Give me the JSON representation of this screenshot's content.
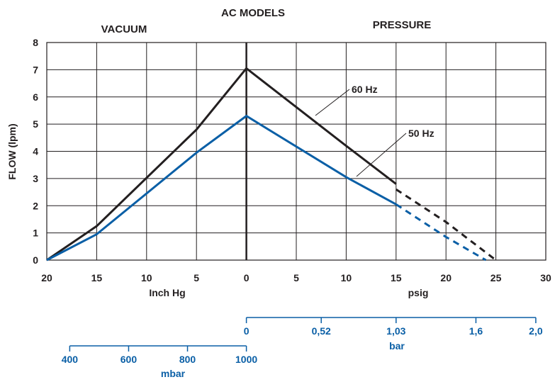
{
  "chart_data": {
    "type": "line",
    "title": "AC MODELS",
    "region_labels": {
      "left": "VACUUM",
      "right": "PRESSURE"
    },
    "ylabel": "FLOW (lpm)",
    "ylim": [
      0,
      8
    ],
    "yticks": [
      "0",
      "1",
      "2",
      "3",
      "4",
      "5",
      "6",
      "7",
      "8"
    ],
    "grid": true,
    "x_axis": {
      "tick_labels": [
        "20",
        "15",
        "10",
        "5",
        "0",
        "5",
        "10",
        "15",
        "20",
        "25",
        "30"
      ],
      "vacuum_unit": "Inch Hg",
      "pressure_unit": "psig"
    },
    "bar_axis": {
      "label": "bar",
      "ticks": [
        {
          "label": "0",
          "psig": 0
        },
        {
          "label": "0,52",
          "psig": 7.5
        },
        {
          "label": "1,03",
          "psig": 15
        },
        {
          "label": "1,6",
          "psig": 23
        },
        {
          "label": "2,0",
          "psig": 29
        }
      ]
    },
    "mbar_axis": {
      "label": "mbar",
      "ticks": [
        {
          "label": "400",
          "inhg": 17.7
        },
        {
          "label": "600",
          "inhg": 11.8
        },
        {
          "label": "800",
          "inhg": 5.9
        },
        {
          "label": "1000",
          "inhg": 0
        }
      ]
    },
    "series": [
      {
        "name": "60 Hz",
        "color": "#231f20",
        "vacuum_inhg": [
          20,
          15,
          5,
          0
        ],
        "vacuum_flow": [
          0,
          1.25,
          4.8,
          7.05
        ],
        "pressure_psig": [
          0,
          10,
          15
        ],
        "pressure_flow": [
          7.05,
          4.2,
          2.8
        ],
        "pressure_dashed_psig": [
          15,
          20,
          25
        ],
        "pressure_dashed_flow": [
          2.6,
          1.4,
          0
        ]
      },
      {
        "name": "50 Hz",
        "color": "#0a5fa6",
        "vacuum_inhg": [
          20,
          15,
          5,
          0
        ],
        "vacuum_flow": [
          0,
          0.95,
          3.95,
          5.3
        ],
        "pressure_psig": [
          0,
          10,
          15
        ],
        "pressure_flow": [
          5.3,
          3.05,
          2.05
        ],
        "pressure_dashed_psig": [
          15,
          20,
          24
        ],
        "pressure_dashed_flow": [
          2.05,
          0.85,
          0
        ]
      }
    ]
  }
}
